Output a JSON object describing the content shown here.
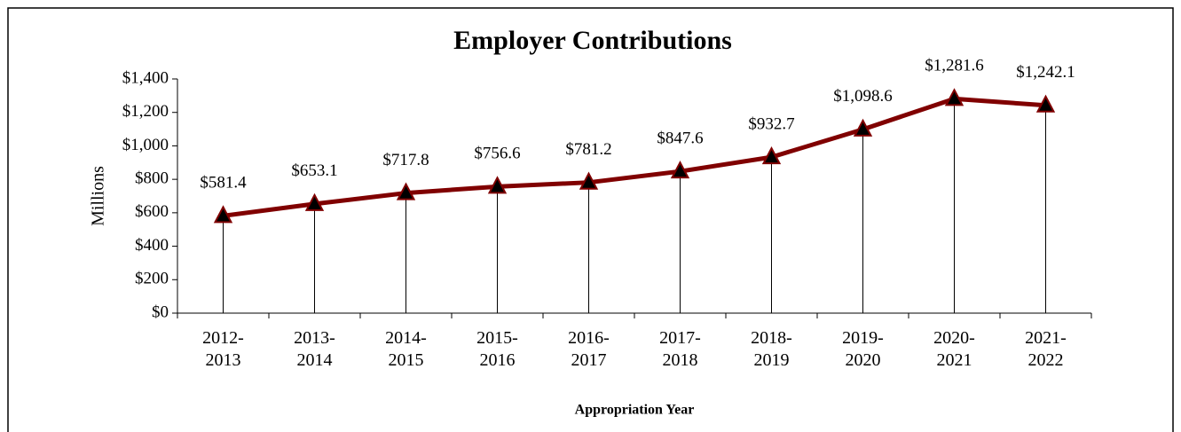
{
  "chart_data": {
    "type": "line",
    "title": "Employer Contributions",
    "y_label": "Millions",
    "x_label": "Appropriation Year",
    "categories": [
      "2012-2013",
      "2013-2014",
      "2014-2015",
      "2015-2016",
      "2016-2017",
      "2017-2018",
      "2018-2019",
      "2019-2020",
      "2020-2021",
      "2021-2022"
    ],
    "series": [
      {
        "name": "Employer Contributions",
        "color": "#800000",
        "values": [
          581.4,
          653.1,
          717.8,
          756.6,
          781.2,
          847.6,
          932.7,
          1098.6,
          1281.6,
          1242.1
        ],
        "value_labels": [
          "$581.4",
          "$653.1",
          "$717.8",
          "$756.6",
          "$781.2",
          "$847.6",
          "$932.7",
          "$1,098.6",
          "$1,281.6",
          "$1,242.1"
        ]
      }
    ],
    "marker_color": "#000000",
    "ylim": [
      0,
      1400
    ],
    "yticks": [
      {
        "value": 0,
        "label": "$0"
      },
      {
        "value": 200,
        "label": "$200"
      },
      {
        "value": 400,
        "label": "$400"
      },
      {
        "value": 600,
        "label": "$600"
      },
      {
        "value": 800,
        "label": "$800"
      },
      {
        "value": 1000,
        "label": "$1,000"
      },
      {
        "value": 1200,
        "label": "$1,200"
      },
      {
        "value": 1400,
        "label": "$1,400"
      }
    ]
  }
}
